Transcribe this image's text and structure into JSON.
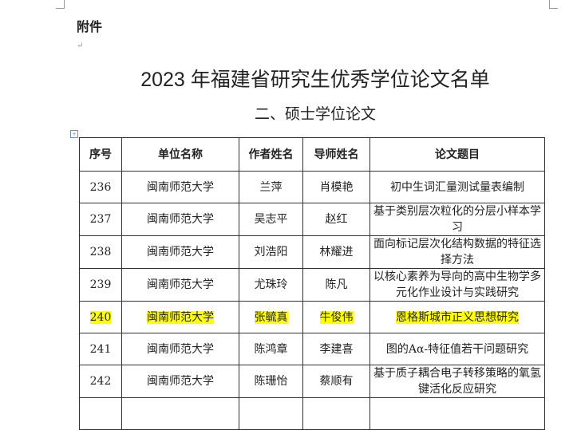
{
  "attachment_label": "附件",
  "title": "2023 年福建省研究生优秀学位论文名单",
  "subtitle": "二、硕士学位论文",
  "table": {
    "headers": [
      "序号",
      "单位名称",
      "作者姓名",
      "导师姓名",
      "论文题目"
    ],
    "rows": [
      {
        "no": "236",
        "unit": "闽南师范大学",
        "author": "兰萍",
        "advisor": "肖模艳",
        "thesis": "初中生词汇量测试量表编制",
        "highlight": false
      },
      {
        "no": "237",
        "unit": "闽南师范大学",
        "author": "吴志平",
        "advisor": "赵红",
        "thesis": "基于类别层次粒化的分层小样本学习",
        "highlight": false
      },
      {
        "no": "238",
        "unit": "闽南师范大学",
        "author": "刘浩阳",
        "advisor": "林耀进",
        "thesis": "面向标记层次化结构数据的特征选择方法",
        "highlight": false
      },
      {
        "no": "239",
        "unit": "闽南师范大学",
        "author": "尤珠玲",
        "advisor": "陈凡",
        "thesis": "以核心素养为导向的高中生物学多元化作业设计与实践研究",
        "highlight": true
      },
      {
        "no": "240",
        "unit": "闽南师范大学",
        "author": "张毓真",
        "advisor": "牛俊伟",
        "thesis": "恩格斯城市正义思想研究",
        "highlight": true
      },
      {
        "no": "241",
        "unit": "闽南师范大学",
        "author": "陈鸿章",
        "advisor": "李建喜",
        "thesis": "图的Aα-特征值若干问题研究",
        "highlight": false
      },
      {
        "no": "242",
        "unit": "闽南师范大学",
        "author": "陈珊怡",
        "advisor": "蔡顺有",
        "thesis": "基于质子耦合电子转移策略的氧氢键活化反应研究",
        "highlight": false
      }
    ]
  },
  "highlight_color": "#ffff00"
}
